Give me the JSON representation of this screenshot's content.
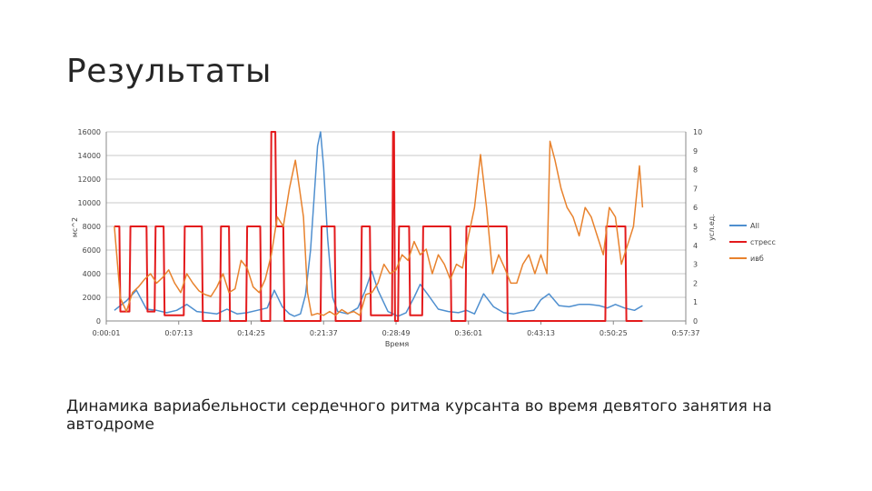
{
  "slide": {
    "title": "Результаты",
    "caption": "Динамика вариабельности сердечного ритма курсанта во время девятого занятия на автодроме"
  },
  "chart_data": {
    "type": "line",
    "xlabel": "Время",
    "ylabel_left": "мс^2",
    "ylabel_right": "усл.ед.",
    "x_ticks": [
      "0:00:01",
      "0:07:13",
      "0:14:25",
      "0:21:37",
      "0:28:49",
      "0:36:01",
      "0:43:13",
      "0:50:25",
      "0:57:37"
    ],
    "y_left_ticks": [
      "0",
      "2000",
      "4000",
      "6000",
      "8000",
      "10000",
      "12000",
      "14000",
      "16000"
    ],
    "y_right_ticks": [
      "0",
      "1",
      "2",
      "3",
      "4",
      "5",
      "6",
      "7",
      "8",
      "9",
      "10"
    ],
    "ylim_left": [
      0,
      16000
    ],
    "ylim_right": [
      0,
      10
    ],
    "xlim_min": [
      0,
      57.6
    ],
    "grid": true,
    "legend_position": "right",
    "series": [
      {
        "name": "All",
        "axis": "left",
        "color": "#4f8fcf",
        "x": [
          0.8,
          2,
          3,
          4,
          5,
          6,
          7,
          8,
          9,
          10,
          11,
          12,
          13,
          14,
          15,
          16,
          16.7,
          17.5,
          18.2,
          18.7,
          19.3,
          19.8,
          20.3,
          20.7,
          21,
          21.3,
          21.6,
          22,
          22.5,
          23,
          24,
          25,
          25.7,
          26.4,
          27,
          28,
          29,
          29.8,
          30.6,
          31.2,
          32,
          33,
          34,
          35,
          35.8,
          36.6,
          37.5,
          38.5,
          39.5,
          40.5,
          41.5,
          42.5,
          43.2,
          44,
          45,
          46,
          47,
          48,
          49,
          49.8,
          50.6,
          51.5,
          52.5,
          53.3
        ],
        "y": [
          900,
          1700,
          2600,
          1000,
          900,
          700,
          900,
          1400,
          800,
          700,
          600,
          1000,
          600,
          700,
          900,
          1100,
          2600,
          1200,
          600,
          400,
          600,
          2200,
          6000,
          11000,
          14800,
          16000,
          13000,
          7000,
          2000,
          800,
          600,
          1100,
          2500,
          4200,
          2600,
          800,
          400,
          700,
          2000,
          3100,
          2200,
          1000,
          800,
          700,
          900,
          600,
          2300,
          1200,
          700,
          600,
          800,
          900,
          1800,
          2300,
          1300,
          1200,
          1400,
          1400,
          1300,
          1100,
          1400,
          1100,
          900,
          1300
        ]
      },
      {
        "name": "стресс",
        "axis": "right",
        "color": "#e31a1c",
        "x": [
          0.8,
          1.3,
          1.4,
          2.3,
          2.4,
          4,
          4.1,
          4.8,
          4.9,
          5.7,
          5.8,
          7.7,
          7.8,
          9.5,
          9.6,
          11.3,
          11.4,
          12.2,
          12.3,
          13.9,
          14,
          15.3,
          15.4,
          16.3,
          16.4,
          16.8,
          16.9,
          17.6,
          17.7,
          21.3,
          21.4,
          22.7,
          22.8,
          25.3,
          25.4,
          26.2,
          26.3,
          28.4,
          28.5,
          28.6,
          28.7,
          29,
          29.1,
          30.1,
          30.2,
          31.4,
          31.5,
          34.2,
          34.3,
          35.7,
          35.8,
          39.8,
          39.9,
          49.6,
          49.7,
          51.6,
          51.7,
          53.3
        ],
        "y": [
          5,
          5,
          0.5,
          0.5,
          5,
          5,
          0.5,
          0.5,
          5,
          5,
          0.3,
          0.3,
          5,
          5,
          0,
          0,
          5,
          5,
          0,
          0,
          5,
          5,
          0,
          0,
          10,
          10,
          5,
          5,
          0,
          0,
          5,
          5,
          0,
          0,
          5,
          5,
          0.3,
          0.3,
          10,
          10,
          0,
          0,
          5,
          5,
          0.3,
          0.3,
          5,
          5,
          0,
          0,
          5,
          5,
          0,
          0,
          5,
          5,
          0,
          0
        ]
      },
      {
        "name": "ивб",
        "axis": "right",
        "color": "#e8822d",
        "x": [
          0.8,
          1.4,
          2,
          2.6,
          3.2,
          3.8,
          4.4,
          5,
          5.6,
          6.2,
          6.8,
          7.4,
          8,
          8.6,
          9.2,
          9.8,
          10.4,
          11,
          11.6,
          12.2,
          12.8,
          13.4,
          14,
          14.6,
          15.2,
          15.8,
          16.4,
          17,
          17.6,
          18.2,
          18.8,
          19.2,
          19.6,
          20,
          20.4,
          21,
          21.6,
          22.2,
          22.8,
          23.4,
          24,
          24.6,
          25.2,
          25.8,
          26.4,
          27,
          27.6,
          28.2,
          28.8,
          29.4,
          30,
          30.6,
          31.2,
          31.8,
          32.4,
          33,
          33.6,
          34.2,
          34.8,
          35.4,
          36,
          36.6,
          37.2,
          37.8,
          38.4,
          39,
          39.6,
          40.2,
          40.8,
          41.4,
          42,
          42.6,
          43.2,
          43.8,
          44.1,
          44.6,
          45.2,
          45.8,
          46.4,
          47,
          47.6,
          48.2,
          48.8,
          49.4,
          50,
          50.6,
          51.2,
          51.8,
          52.4,
          53,
          53.3
        ],
        "y": [
          5,
          1.2,
          0.5,
          1.5,
          1.8,
          2.2,
          2.5,
          2,
          2.3,
          2.7,
          2,
          1.5,
          2.5,
          2,
          1.6,
          1.4,
          1.3,
          1.8,
          2.5,
          1.5,
          1.7,
          3.2,
          2.8,
          1.8,
          1.5,
          2.2,
          3.5,
          5.5,
          5,
          7,
          8.5,
          7,
          5.5,
          1.5,
          0.3,
          0.4,
          0.3,
          0.5,
          0.3,
          0.6,
          0.4,
          0.5,
          0.3,
          1.4,
          1.5,
          2,
          3,
          2.5,
          2.7,
          3.5,
          3.2,
          4.2,
          3.5,
          3.8,
          2.5,
          3.5,
          3,
          2.2,
          3,
          2.8,
          4.5,
          6,
          8.8,
          6,
          2.5,
          3.5,
          2.8,
          2,
          2,
          3,
          3.5,
          2.5,
          3.5,
          2.5,
          9.5,
          8.5,
          7,
          6,
          5.5,
          4.5,
          6,
          5.5,
          4.5,
          3.5,
          6,
          5.5,
          3,
          4,
          5,
          8.2,
          6
        ]
      }
    ]
  }
}
